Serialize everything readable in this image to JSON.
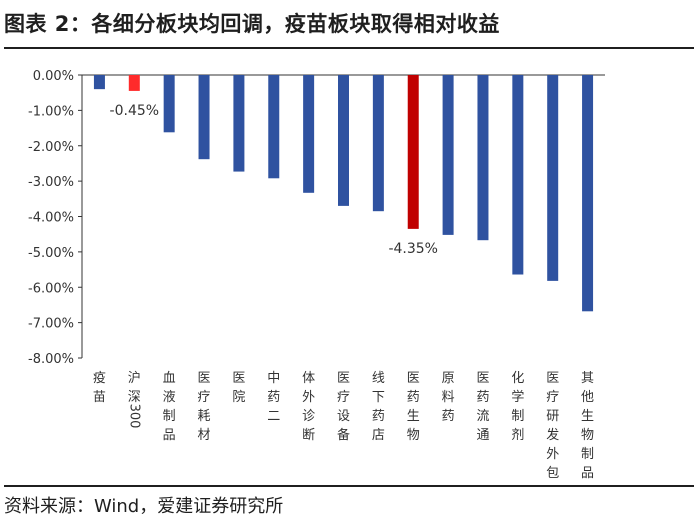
{
  "title": "图表 2：各细分板块均回调，疫苗板块取得相对收益",
  "source": "资料来源：Wind，爱建证券研究所",
  "colors": {
    "default_bar": "#2f52a0",
    "highlight_bar": "#c00000",
    "bright_red_bar": "#ff2b2b",
    "axis": "#333333"
  },
  "chart_data": {
    "type": "bar",
    "title": "",
    "xlabel": "",
    "ylabel": "",
    "ylim": [
      -0.08,
      0.0
    ],
    "yticks": [
      "0.00%",
      "-1.00%",
      "-2.00%",
      "-3.00%",
      "-4.00%",
      "-5.00%",
      "-6.00%",
      "-7.00%",
      "-8.00%"
    ],
    "grid": false,
    "categories": [
      "疫苗",
      "沪深300",
      "血液制品",
      "医疗耗材",
      "医院",
      "中药二",
      "体外诊断",
      "医疗设备",
      "线下药店",
      "医药生物",
      "原料药",
      "医药流通",
      "化学制剂",
      "医疗研发外包",
      "其他生物制品"
    ],
    "values": [
      -0.004,
      -0.0045,
      -0.0162,
      -0.0238,
      -0.0273,
      -0.0292,
      -0.0333,
      -0.037,
      -0.0385,
      -0.0435,
      -0.0452,
      -0.0467,
      -0.0564,
      -0.0582,
      -0.0668
    ],
    "bar_colors": [
      "default",
      "bright_red",
      "default",
      "default",
      "default",
      "default",
      "default",
      "default",
      "default",
      "highlight",
      "default",
      "default",
      "default",
      "default",
      "default"
    ],
    "annotations": [
      {
        "category": "沪深300",
        "text": "-0.45%"
      },
      {
        "category": "医药生物",
        "text": "-4.35%"
      }
    ]
  }
}
